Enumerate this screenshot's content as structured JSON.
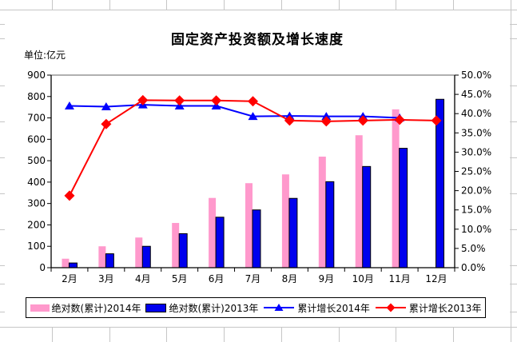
{
  "chart_data": {
    "type": "combo-bar-line",
    "title": "固定资产投资额及增长速度",
    "unit_label": "单位:亿元",
    "categories": [
      "2月",
      "3月",
      "4月",
      "5月",
      "6月",
      "7月",
      "8月",
      "9月",
      "10月",
      "11月",
      "12月"
    ],
    "bar_series": [
      {
        "key": "abs2014",
        "name": "绝对数(累计)2014年",
        "color": "#FF99CC",
        "outline": "none",
        "values": [
          42,
          100,
          141,
          209,
          326,
          395,
          436,
          519,
          619,
          740,
          null
        ]
      },
      {
        "key": "abs2013",
        "name": "绝对数(累计)2013年",
        "color": "#0000EE",
        "outline": "#000000",
        "values": [
          22,
          65,
          100,
          159,
          236,
          270,
          324,
          402,
          473,
          558,
          787
        ]
      }
    ],
    "line_series": [
      {
        "key": "growth2014",
        "name": "累计增长2014年",
        "color": "#0000FF",
        "marker": "triangle",
        "values": [
          42.0,
          41.8,
          42.3,
          42.0,
          42.0,
          39.3,
          39.4,
          39.3,
          39.3,
          38.9,
          null
        ]
      },
      {
        "key": "growth2013",
        "name": "累计增长2013年",
        "color": "#FF0000",
        "marker": "diamond",
        "values": [
          18.7,
          37.3,
          43.5,
          43.4,
          43.4,
          43.2,
          38.2,
          38.0,
          38.2,
          38.4,
          38.2
        ]
      }
    ],
    "left_axis": {
      "min": 0,
      "max": 900,
      "step": 100,
      "tick_labels": [
        "0",
        "100",
        "200",
        "300",
        "400",
        "500",
        "600",
        "700",
        "800",
        "900"
      ]
    },
    "right_axis": {
      "min": 0,
      "max": 50,
      "step": 5,
      "tick_labels": [
        "0.0%",
        "5.0%",
        "10.0%",
        "15.0%",
        "20.0%",
        "25.0%",
        "30.0%",
        "35.0%",
        "40.0%",
        "45.0%",
        "50.0%"
      ]
    },
    "legend_position": "bottom",
    "grid": "off",
    "plot_border_top_color": "#808080"
  }
}
